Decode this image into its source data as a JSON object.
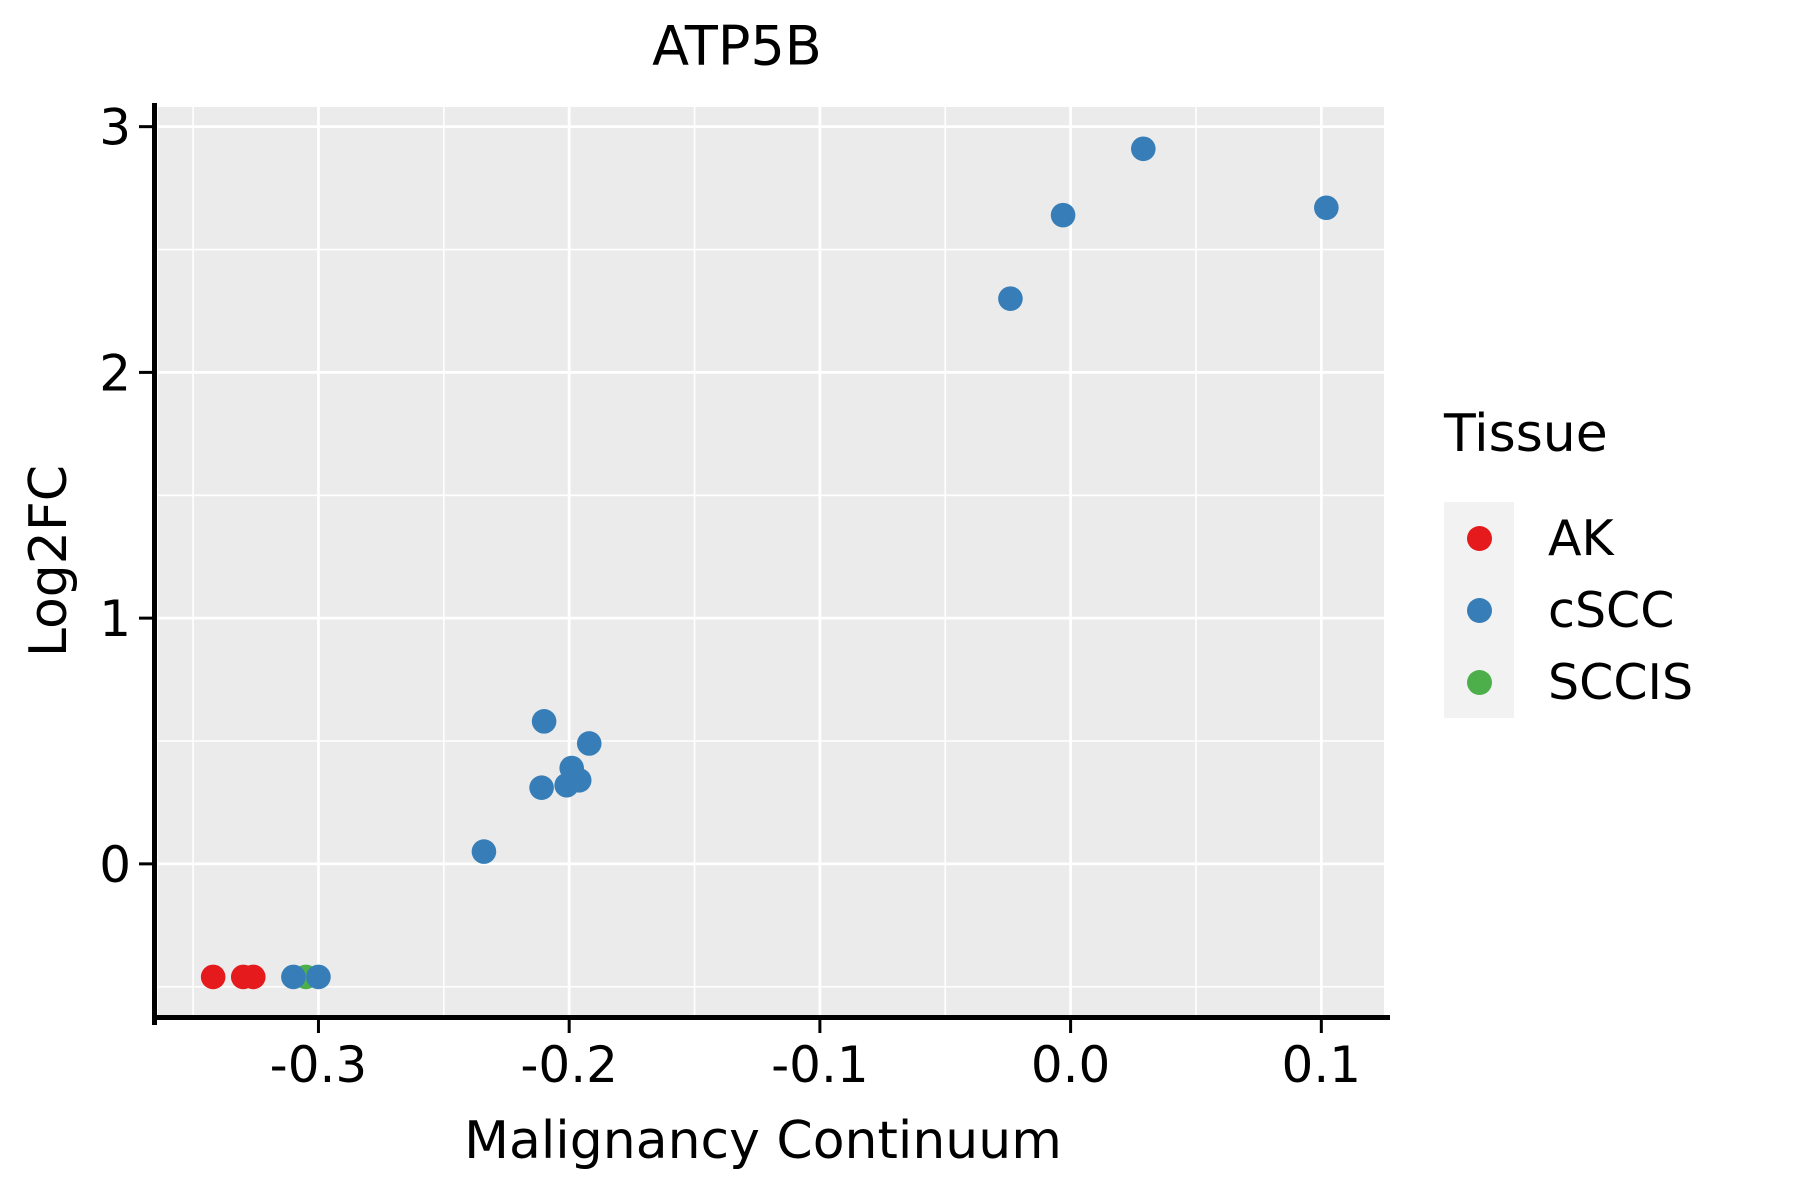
{
  "title": "ATP5B",
  "x_axis": {
    "label": "Malignancy Continuum"
  },
  "y_axis": {
    "label": "Log2FC"
  },
  "legend": {
    "title": "Tissue",
    "entries": [
      {
        "label": "AK",
        "color": "#e41a1c"
      },
      {
        "label": "cSCC",
        "color": "#377eb8"
      },
      {
        "label": "SCCIS",
        "color": "#4daf4a"
      }
    ]
  },
  "colors": {
    "panel_bg": "#ebebeb",
    "grid": "#ffffff",
    "axis_line": "#000000",
    "legend_key_bg": "#f2f2f2",
    "red": "#e41a1c",
    "blue": "#377eb8",
    "green": "#4daf4a"
  },
  "chart_data": {
    "type": "scatter",
    "title": "ATP5B",
    "xlabel": "Malignancy Continuum",
    "ylabel": "Log2FC",
    "xlim": [
      -0.364,
      0.125
    ],
    "ylim": [
      -0.615,
      3.08
    ],
    "x_ticks": [
      {
        "label": "-0.3",
        "value": -0.3
      },
      {
        "label": "-0.2",
        "value": -0.2
      },
      {
        "label": "-0.1",
        "value": -0.1
      },
      {
        "label": "0.0",
        "value": 0.0
      },
      {
        "label": "0.1",
        "value": 0.1
      }
    ],
    "y_ticks": [
      {
        "label": "0",
        "value": 0
      },
      {
        "label": "1",
        "value": 1
      },
      {
        "label": "2",
        "value": 2
      },
      {
        "label": "3",
        "value": 3
      }
    ],
    "x_minor_step": 0.05,
    "y_minor_step": 0.5,
    "grid": {
      "major": true,
      "minor": true
    },
    "legend_position": "right",
    "point_radius_px": 12.3,
    "series": [
      {
        "name": "AK",
        "color": "#e41a1c",
        "points": [
          {
            "x": -0.342,
            "y": -0.46
          },
          {
            "x": -0.33,
            "y": -0.46
          },
          {
            "x": -0.326,
            "y": -0.46
          }
        ]
      },
      {
        "name": "SCCIS",
        "color": "#4daf4a",
        "points": [
          {
            "x": -0.305,
            "y": -0.46
          }
        ]
      },
      {
        "name": "cSCC",
        "color": "#377eb8",
        "points": [
          {
            "x": -0.31,
            "y": -0.46
          },
          {
            "x": -0.3,
            "y": -0.46
          },
          {
            "x": -0.234,
            "y": 0.05
          },
          {
            "x": -0.211,
            "y": 0.31
          },
          {
            "x": -0.201,
            "y": 0.32
          },
          {
            "x": -0.196,
            "y": 0.34
          },
          {
            "x": -0.199,
            "y": 0.39
          },
          {
            "x": -0.192,
            "y": 0.49
          },
          {
            "x": -0.21,
            "y": 0.58
          },
          {
            "x": -0.024,
            "y": 2.3
          },
          {
            "x": -0.003,
            "y": 2.64
          },
          {
            "x": 0.029,
            "y": 2.91
          },
          {
            "x": 0.102,
            "y": 2.67
          }
        ]
      }
    ]
  }
}
